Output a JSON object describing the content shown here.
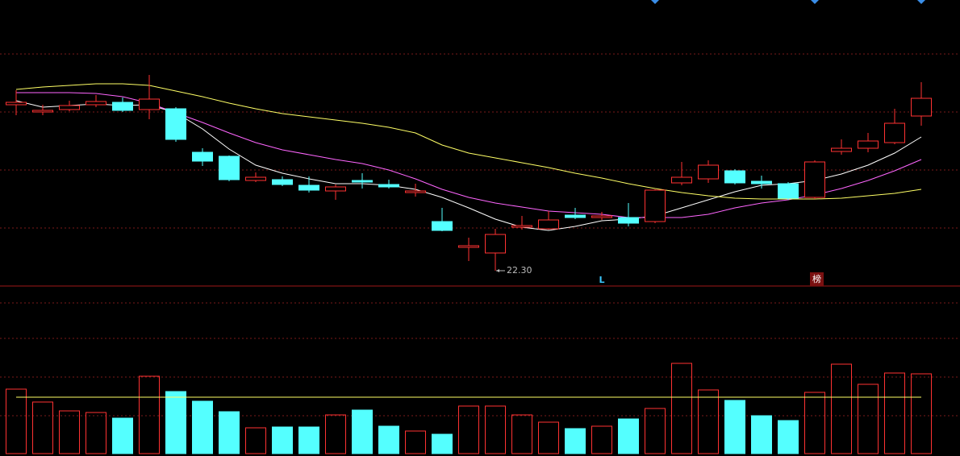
{
  "chart_data": [
    {
      "type": "candlestick",
      "up_color": "#ff3232",
      "down_color": "#54ffff",
      "ylim": [
        22.0,
        29.02
      ],
      "open": [
        26.42,
        26.24,
        26.3,
        26.42,
        26.48,
        26.3,
        26.32,
        25.24,
        25.14,
        24.54,
        24.56,
        24.42,
        24.28,
        24.54,
        24.44,
        24.24,
        23.52,
        22.88,
        22.74,
        23.38,
        23.34,
        23.68,
        23.62,
        23.62,
        23.52,
        24.48,
        24.58,
        24.78,
        24.52,
        24.46,
        24.12,
        25.26,
        25.34,
        25.48,
        26.14
      ],
      "high": [
        26.78,
        26.42,
        26.52,
        26.66,
        26.6,
        27.16,
        26.36,
        25.34,
        25.16,
        24.74,
        24.64,
        24.64,
        24.44,
        24.72,
        24.56,
        24.46,
        23.86,
        23.12,
        23.34,
        23.66,
        23.78,
        23.86,
        23.76,
        23.98,
        24.32,
        25.0,
        25.04,
        24.82,
        24.66,
        24.5,
        25.04,
        25.56,
        25.72,
        26.32,
        26.98
      ],
      "low": [
        26.16,
        26.16,
        26.26,
        26.36,
        26.24,
        26.06,
        25.5,
        24.9,
        24.52,
        24.5,
        24.4,
        24.24,
        24.06,
        24.34,
        24.34,
        24.14,
        23.28,
        22.54,
        22.3,
        23.32,
        23.32,
        23.58,
        23.56,
        23.4,
        23.48,
        24.42,
        24.48,
        24.44,
        24.34,
        24.06,
        24.08,
        25.18,
        25.24,
        25.44,
        25.9
      ],
      "close": [
        26.48,
        26.28,
        26.4,
        26.5,
        26.28,
        26.56,
        25.56,
        25.02,
        24.56,
        24.62,
        24.44,
        24.3,
        24.38,
        24.5,
        24.38,
        24.28,
        23.3,
        22.92,
        23.2,
        23.42,
        23.56,
        23.62,
        23.66,
        23.48,
        24.3,
        24.62,
        24.92,
        24.48,
        24.46,
        24.1,
        25.0,
        25.34,
        25.52,
        25.96,
        26.58
      ],
      "moving_averages": [
        {
          "color": "#ffffff",
          "values": [
            26.52,
            26.36,
            26.4,
            26.44,
            26.4,
            26.42,
            26.22,
            25.82,
            25.32,
            24.92,
            24.72,
            24.58,
            24.46,
            24.46,
            24.42,
            24.32,
            24.12,
            23.86,
            23.58,
            23.38,
            23.3,
            23.4,
            23.54,
            23.58,
            23.66,
            23.86,
            24.06,
            24.26,
            24.42,
            24.46,
            24.54,
            24.7,
            24.92,
            25.22,
            25.62
          ]
        },
        {
          "color": "#ff66ff",
          "values": [
            26.72,
            26.72,
            26.72,
            26.7,
            26.62,
            26.46,
            26.22,
            25.98,
            25.72,
            25.48,
            25.3,
            25.18,
            25.06,
            24.96,
            24.8,
            24.58,
            24.32,
            24.12,
            23.98,
            23.88,
            23.78,
            23.74,
            23.7,
            23.62,
            23.62,
            23.62,
            23.7,
            23.86,
            23.98,
            24.06,
            24.18,
            24.34,
            24.54,
            24.78,
            25.06
          ]
        },
        {
          "color": "#ffff66",
          "values": [
            26.8,
            26.86,
            26.9,
            26.94,
            26.94,
            26.9,
            26.76,
            26.62,
            26.46,
            26.32,
            26.2,
            26.12,
            26.04,
            25.96,
            25.86,
            25.72,
            25.42,
            25.22,
            25.1,
            24.98,
            24.86,
            24.72,
            24.6,
            24.46,
            24.34,
            24.24,
            24.16,
            24.1,
            24.08,
            24.08,
            24.08,
            24.1,
            24.16,
            24.22,
            24.32
          ]
        }
      ],
      "annotations": [
        {
          "text": "22.30"
        },
        {
          "text": "L"
        },
        {
          "text": "榜"
        }
      ]
    },
    {
      "type": "bar",
      "ylim": [
        0,
        210
      ],
      "values": [
        80,
        64,
        53,
        51,
        44,
        96,
        77,
        65,
        52,
        32,
        33,
        33,
        48,
        54,
        34,
        28,
        24,
        59,
        59,
        48,
        39,
        31,
        34,
        43,
        56,
        112,
        79,
        66,
        47,
        41,
        76,
        111,
        86,
        100,
        99
      ],
      "moving_average": {
        "color": "#ffff66",
        "values": [
          70,
          70,
          70,
          70,
          70,
          70,
          70,
          70,
          70,
          70,
          70,
          70,
          70,
          70,
          70,
          70,
          70,
          70,
          70,
          70,
          70,
          70,
          70,
          70,
          70,
          70,
          70,
          70,
          70,
          70,
          70,
          70,
          70,
          70,
          70
        ]
      }
    }
  ]
}
